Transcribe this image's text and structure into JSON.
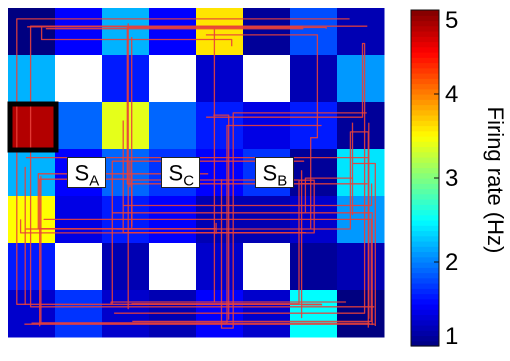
{
  "chart_data": {
    "type": "heatmap",
    "title": "",
    "xlabel": "",
    "ylabel": "",
    "grid": {
      "rows": 7,
      "cols": 8,
      "values": [
        [
          1.0,
          1.5,
          2.2,
          1.5,
          3.6,
          1.1,
          1.8,
          1.2
        ],
        [
          2.2,
          null,
          1.6,
          null,
          1.3,
          null,
          1.2,
          2.1
        ],
        [
          4.8,
          1.9,
          3.4,
          1.9,
          1.6,
          1.4,
          1.6,
          1.1
        ],
        [
          2.2,
          1.5,
          1.9,
          1.7,
          1.5,
          1.7,
          1.1,
          2.4
        ],
        [
          3.5,
          1.4,
          1.6,
          1.5,
          1.2,
          1.2,
          1.3,
          2.1
        ],
        [
          1.6,
          null,
          1.2,
          null,
          1.3,
          null,
          1.1,
          1.2
        ],
        [
          1.3,
          1.7,
          1.3,
          1.2,
          1.5,
          1.3,
          2.5,
          1.0
        ]
      ],
      "highlighted_cell": {
        "row": 2,
        "col": 0
      }
    },
    "state_labels": [
      {
        "main": "S",
        "sub": "A",
        "row": 3,
        "col": 1
      },
      {
        "main": "S",
        "sub": "C",
        "row": 3,
        "col": 3
      },
      {
        "main": "S",
        "sub": "B",
        "row": 3,
        "col": 5
      }
    ],
    "colorbar": {
      "label": "Firing rate (Hz)",
      "min": 1,
      "max": 5,
      "ticks": [
        "1",
        "2",
        "3",
        "4",
        "5"
      ],
      "colormap": "jet"
    },
    "colors": {
      "trajectory": "#e8403a",
      "highlight_border": "#000000",
      "obstacle": "#ffffff"
    }
  }
}
